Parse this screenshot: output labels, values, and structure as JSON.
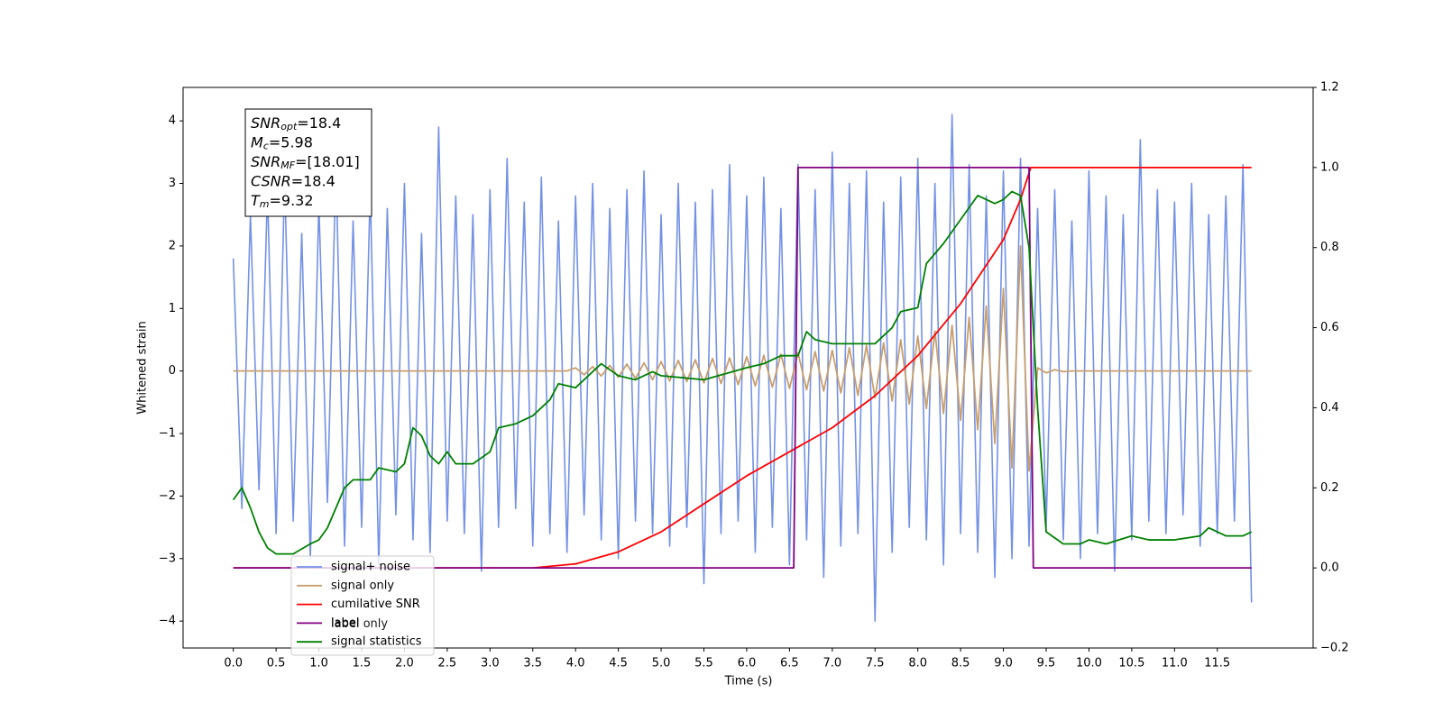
{
  "chart_data": {
    "type": "line",
    "xlabel": "Time (s)",
    "ylabel": "Whitened strain",
    "xlim": [
      -0.587,
      12.62
    ],
    "ylim": [
      -4.43,
      4.535
    ],
    "y2lim": [
      -0.2,
      1.2
    ],
    "xticks": [
      {
        "value": 0,
        "label": "0.0"
      },
      0.5,
      {
        "value": 1,
        "label": "1.0"
      },
      1.5,
      {
        "value": 2,
        "label": "2.0"
      },
      2.5,
      {
        "value": 3,
        "label": "3.0"
      },
      3.5,
      {
        "value": 4,
        "label": "4.0"
      },
      4.5,
      {
        "value": 5,
        "label": "5.0"
      },
      5.5,
      {
        "value": 6,
        "label": "6.0"
      },
      6.5,
      {
        "value": 7,
        "label": "7.0"
      },
      7.5,
      {
        "value": 8,
        "label": "8.0"
      },
      8.5,
      {
        "value": 9,
        "label": "9.0"
      },
      9.5,
      {
        "value": 10,
        "label": "10.0"
      },
      10.5,
      {
        "value": 11,
        "label": "11.0"
      },
      11.5
    ],
    "yticks": [
      {
        "value": -4,
        "label": "−4"
      },
      {
        "value": -3,
        "label": "−3"
      },
      {
        "value": -2,
        "label": "−2"
      },
      {
        "value": -1,
        "label": "−1"
      },
      0,
      1,
      2,
      3,
      4
    ],
    "y2ticks": [
      {
        "value": -0.2,
        "label": "−0.2"
      },
      {
        "value": 0,
        "label": "0.0"
      },
      0.2,
      0.4,
      0.6,
      0.8,
      {
        "value": 1,
        "label": "1.0"
      },
      {
        "value": 1.2,
        "label": "1.2"
      }
    ],
    "annotations": [
      {
        "base": "SNR",
        "sub": "opt",
        "rest": "=18.4"
      },
      {
        "base": "M",
        "sub": "c",
        "rest": "=5.98"
      },
      {
        "base": "SNR",
        "sub": "MF",
        "rest": "=[18.01]"
      },
      {
        "base": "CSNR",
        "rest": "=18.4"
      },
      {
        "base": "T",
        "sub": "m",
        "rest": "=9.32"
      }
    ],
    "legend_overlap": {
      "name": "label only",
      "color": "#c9a8c9"
    },
    "series": [
      {
        "name": "signal+ noise",
        "color": "#7391e6",
        "axis": "y",
        "x": [
          0,
          0.1,
          0.2,
          0.3,
          0.4,
          0.5,
          0.6,
          0.7,
          0.8,
          0.9,
          1,
          1.1,
          1.2,
          1.3,
          1.4,
          1.5,
          1.6,
          1.7,
          1.8,
          1.9,
          2,
          2.1,
          2.2,
          2.3,
          2.4,
          2.5,
          2.6,
          2.7,
          2.8,
          2.9,
          3,
          3.1,
          3.2,
          3.3,
          3.4,
          3.5,
          3.6,
          3.7,
          3.8,
          3.9,
          4,
          4.1,
          4.2,
          4.3,
          4.4,
          4.5,
          4.6,
          4.7,
          4.8,
          4.9,
          5,
          5.1,
          5.2,
          5.3,
          5.4,
          5.5,
          5.6,
          5.7,
          5.8,
          5.9,
          6,
          6.1,
          6.2,
          6.3,
          6.4,
          6.5,
          6.6,
          6.7,
          6.8,
          6.9,
          7,
          7.1,
          7.2,
          7.3,
          7.4,
          7.5,
          7.6,
          7.7,
          7.8,
          7.9,
          8,
          8.1,
          8.2,
          8.3,
          8.4,
          8.5,
          8.6,
          8.7,
          8.8,
          8.9,
          9,
          9.1,
          9.2,
          9.3,
          9.4,
          9.5,
          9.6,
          9.7,
          9.8,
          9.9,
          10,
          10.1,
          10.2,
          10.3,
          10.4,
          10.5,
          10.6,
          10.7,
          10.8,
          10.9,
          11,
          11.1,
          11.2,
          11.3,
          11.4,
          11.5,
          11.6,
          11.7,
          11.8,
          11.9
        ],
        "values": [
          1.8,
          -2.2,
          2.5,
          -1.9,
          2.9,
          -2.6,
          3.1,
          -2.4,
          2.2,
          -3.0,
          2.7,
          -2.1,
          3.3,
          -2.8,
          2.4,
          -2.5,
          2.9,
          -3.1,
          2.6,
          -2.3,
          3.0,
          -2.7,
          2.2,
          -2.9,
          3.9,
          -2.4,
          2.8,
          -2.6,
          2.5,
          -3.2,
          2.9,
          -2.5,
          3.4,
          -2.2,
          2.7,
          -2.8,
          3.1,
          -2.6,
          2.4,
          -2.9,
          2.8,
          -2.3,
          3.0,
          -2.7,
          2.6,
          -3.0,
          2.9,
          -2.4,
          3.2,
          -2.6,
          2.5,
          -2.8,
          3.0,
          -2.5,
          2.7,
          -3.4,
          2.9,
          -2.6,
          3.3,
          -2.4,
          2.8,
          -2.9,
          3.1,
          -2.5,
          2.6,
          -3.1,
          3.3,
          -2.7,
          2.9,
          -3.3,
          3.5,
          -2.8,
          3.0,
          -2.6,
          3.2,
          -4.0,
          2.7,
          -2.9,
          3.1,
          -2.5,
          3.4,
          -2.7,
          3.0,
          -3.1,
          4.1,
          -2.6,
          3.3,
          -2.9,
          2.8,
          -3.3,
          3.2,
          -3.0,
          3.4,
          -2.8,
          2.6,
          -2.5,
          2.9,
          -2.7,
          2.4,
          -3.0,
          3.2,
          -2.6,
          2.8,
          -3.2,
          2.5,
          -2.7,
          3.7,
          -2.4,
          2.9,
          -2.6,
          2.7,
          -2.3,
          3.0,
          -2.8,
          2.5,
          -2.6,
          2.8,
          -2.4,
          3.3,
          -3.7
        ]
      },
      {
        "name": "signal only",
        "color": "#c79f6e",
        "axis": "y",
        "x": [
          0,
          0.1,
          0.2,
          0.3,
          0.4,
          0.5,
          0.6,
          0.7,
          0.8,
          0.9,
          1,
          1.1,
          1.2,
          1.3,
          1.4,
          1.5,
          1.6,
          1.7,
          1.8,
          1.9,
          2,
          2.1,
          2.2,
          2.3,
          2.4,
          2.5,
          2.6,
          2.7,
          2.8,
          2.9,
          3,
          3.1,
          3.2,
          3.3,
          3.4,
          3.5,
          3.6,
          3.7,
          3.8,
          3.9,
          4,
          4.1,
          4.2,
          4.3,
          4.4,
          4.5,
          4.6,
          4.7,
          4.8,
          4.9,
          5,
          5.1,
          5.2,
          5.3,
          5.4,
          5.5,
          5.6,
          5.7,
          5.8,
          5.9,
          6,
          6.1,
          6.2,
          6.3,
          6.4,
          6.5,
          6.6,
          6.7,
          6.8,
          6.9,
          7,
          7.1,
          7.2,
          7.3,
          7.4,
          7.5,
          7.6,
          7.7,
          7.8,
          7.9,
          8,
          8.1,
          8.2,
          8.3,
          8.4,
          8.5,
          8.6,
          8.7,
          8.8,
          8.9,
          9,
          9.1,
          9.2,
          9.3,
          9.4,
          9.5,
          9.6,
          9.7,
          9.8,
          9.9,
          10,
          10.1,
          10.2,
          10.3,
          10.4,
          10.5,
          10.6,
          10.7,
          10.8,
          10.9,
          11,
          11.1,
          11.2,
          11.3,
          11.4,
          11.5,
          11.6,
          11.7,
          11.8,
          11.9
        ],
        "values": [
          0,
          0,
          0,
          0,
          0,
          0,
          0,
          0,
          0,
          0,
          0,
          0,
          0,
          0,
          0,
          0,
          0,
          0,
          0,
          0,
          0,
          0,
          0,
          0,
          0,
          0,
          0,
          0,
          0,
          0,
          0,
          0,
          0,
          0,
          0,
          0,
          0,
          0,
          0,
          0,
          0.05,
          -0.06,
          0.07,
          -0.08,
          0.09,
          -0.1,
          0.11,
          -0.12,
          0.13,
          -0.14,
          0.15,
          -0.16,
          0.17,
          -0.17,
          0.18,
          -0.19,
          0.2,
          -0.2,
          0.21,
          -0.22,
          0.23,
          -0.24,
          0.25,
          -0.26,
          0.27,
          -0.28,
          0.29,
          -0.3,
          0.31,
          -0.32,
          0.33,
          -0.35,
          0.37,
          -0.39,
          0.41,
          -0.43,
          0.45,
          -0.48,
          0.5,
          -0.53,
          0.56,
          -0.6,
          0.64,
          -0.68,
          0.73,
          -0.79,
          0.86,
          -0.94,
          1.04,
          -1.16,
          1.32,
          -1.55,
          2.0,
          -1.6,
          0.05,
          -0.03,
          0.02,
          -0.01,
          0,
          0,
          0,
          0,
          0,
          0,
          0,
          0,
          0,
          0,
          0,
          0,
          0,
          0,
          0,
          0,
          0,
          0,
          0,
          0,
          0,
          0
        ]
      },
      {
        "name": "cumilative SNR",
        "color": "#ff0000",
        "axis": "y2",
        "x": [
          0,
          3.5,
          4,
          4.5,
          5,
          5.5,
          6,
          6.5,
          7,
          7.5,
          8,
          8.5,
          9,
          9.2,
          9.32,
          11.9
        ],
        "values": [
          0,
          0,
          0.01,
          0.04,
          0.09,
          0.16,
          0.23,
          0.29,
          0.35,
          0.43,
          0.53,
          0.66,
          0.82,
          0.92,
          1,
          1
        ]
      },
      {
        "name": "label",
        "color": "#800080",
        "axis": "y2",
        "x": [
          0,
          6.55,
          6.6,
          9.3,
          9.35,
          11.9
        ],
        "values": [
          0,
          0,
          1,
          1,
          0,
          0
        ]
      },
      {
        "name": "signal statistics",
        "color": "#008000",
        "axis": "y2",
        "x": [
          0,
          0.1,
          0.2,
          0.3,
          0.4,
          0.5,
          0.7,
          0.9,
          1,
          1.1,
          1.2,
          1.3,
          1.4,
          1.6,
          1.7,
          1.9,
          2,
          2.1,
          2.2,
          2.3,
          2.4,
          2.5,
          2.6,
          2.8,
          3,
          3.1,
          3.3,
          3.5,
          3.7,
          3.8,
          4,
          4.1,
          4.3,
          4.5,
          4.7,
          4.9,
          5,
          5.5,
          6,
          6.2,
          6.4,
          6.6,
          6.7,
          6.8,
          7,
          7.3,
          7.5,
          7.7,
          7.8,
          8,
          8.1,
          8.3,
          8.5,
          8.7,
          8.9,
          9,
          9.1,
          9.2,
          9.3,
          9.4,
          9.5,
          9.7,
          9.9,
          10,
          10.2,
          10.5,
          10.7,
          11,
          11.3,
          11.4,
          11.6,
          11.8,
          11.9
        ],
        "values": [
          0.17,
          0.2,
          0.15,
          0.09,
          0.05,
          0.035,
          0.035,
          0.06,
          0.07,
          0.1,
          0.15,
          0.2,
          0.22,
          0.22,
          0.25,
          0.24,
          0.26,
          0.35,
          0.33,
          0.28,
          0.26,
          0.29,
          0.26,
          0.26,
          0.29,
          0.35,
          0.36,
          0.38,
          0.42,
          0.46,
          0.45,
          0.47,
          0.51,
          0.48,
          0.47,
          0.49,
          0.48,
          0.47,
          0.5,
          0.51,
          0.53,
          0.53,
          0.59,
          0.57,
          0.56,
          0.56,
          0.56,
          0.6,
          0.64,
          0.65,
          0.76,
          0.81,
          0.87,
          0.93,
          0.91,
          0.92,
          0.94,
          0.93,
          0.8,
          0.4,
          0.09,
          0.06,
          0.06,
          0.07,
          0.06,
          0.08,
          0.07,
          0.07,
          0.08,
          0.1,
          0.08,
          0.08,
          0.09
        ]
      }
    ]
  }
}
